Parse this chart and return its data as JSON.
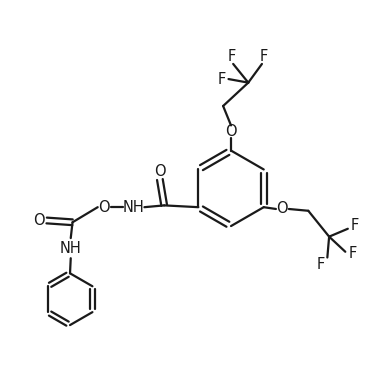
{
  "line_color": "#1a1a1a",
  "background_color": "#ffffff",
  "line_width": 1.6,
  "font_size": 10.5,
  "figsize": [
    3.65,
    3.91
  ],
  "dpi": 100,
  "xlim": [
    0,
    10
  ],
  "ylim": [
    0,
    10.7
  ]
}
